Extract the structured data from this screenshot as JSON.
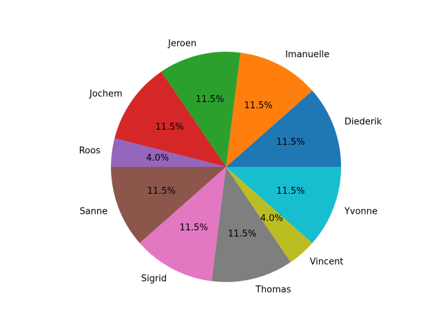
{
  "chart_data": {
    "type": "pie",
    "title": "",
    "start_angle": 0,
    "direction": "counterclockwise",
    "labels": [
      "Diederik",
      "Imanuelle",
      "Jeroen",
      "Jochem",
      "Roos",
      "Sanne",
      "Sigrid",
      "Thomas",
      "Vincent",
      "Yvonne"
    ],
    "values": [
      11.5,
      11.5,
      11.5,
      11.5,
      4.0,
      11.5,
      11.5,
      11.5,
      4.0,
      11.5
    ],
    "pct_labels": [
      "11.5%",
      "11.5%",
      "11.5%",
      "11.5%",
      "4.0%",
      "11.5%",
      "11.5%",
      "11.5%",
      "4.0%",
      "11.5%"
    ],
    "colors": [
      "#1f77b4",
      "#ff7f0e",
      "#2ca02c",
      "#d62728",
      "#9467bd",
      "#8c564b",
      "#e377c2",
      "#7f7f7f",
      "#bcbd22",
      "#17becf"
    ]
  }
}
